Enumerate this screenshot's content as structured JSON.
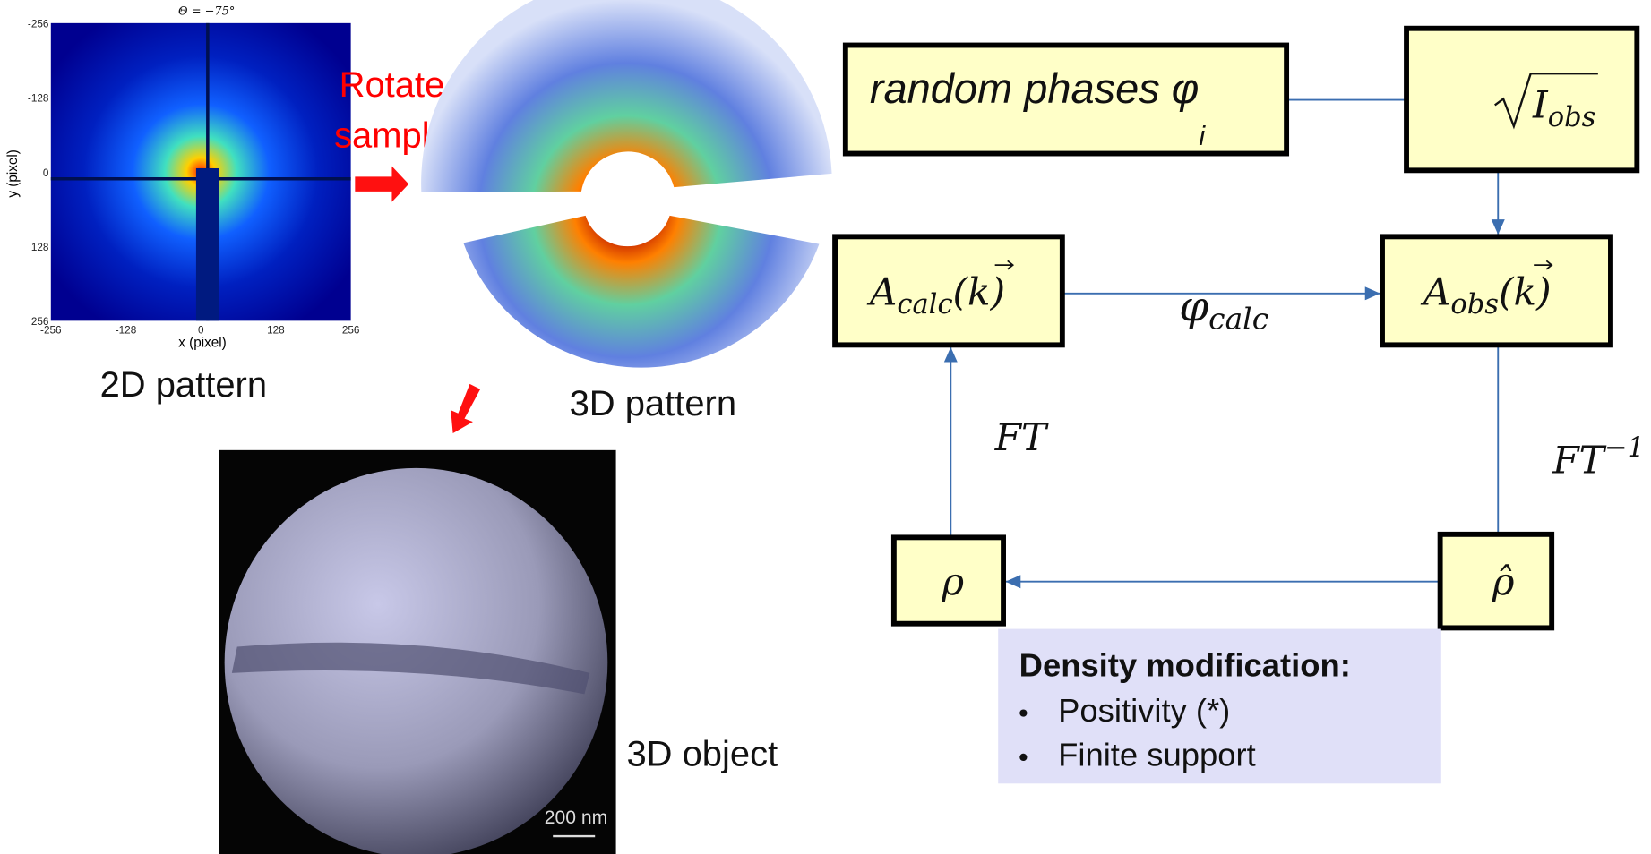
{
  "pattern_2d": {
    "title": "Θ = −75°",
    "xlabel": "x (pixel)",
    "ylabel": "y (pixel)",
    "xticks": [
      -256,
      -128,
      0,
      128,
      256
    ],
    "yticks": [
      -256,
      -128,
      0,
      128,
      256
    ]
  },
  "rotate_label": [
    "Rotate",
    "sample"
  ],
  "captions": {
    "pattern_2d": "2D pattern",
    "pattern_3d": "3D pattern",
    "object_3d": "3D object",
    "scale_bar": "200 nm"
  },
  "nodes": [
    {
      "text": "random phases φ",
      "sub": "i"
    },
    {
      "text": "I",
      "sub": "obs"
    },
    {
      "text": "A",
      "sub": "calc",
      "arg": "(k)"
    },
    {
      "text": "A",
      "sub": "obs",
      "arg": "(k)"
    },
    {
      "text": "ρ"
    },
    {
      "text": "ρ̂"
    }
  ],
  "edge_labels": [
    {
      "text": "φ",
      "sub": "calc"
    },
    {
      "text": "FT"
    },
    {
      "text": "FT",
      "sup": "−1"
    }
  ],
  "density_modification": {
    "title": "Density modification:",
    "items": [
      "Positivity (*)",
      "Finite support"
    ]
  }
}
